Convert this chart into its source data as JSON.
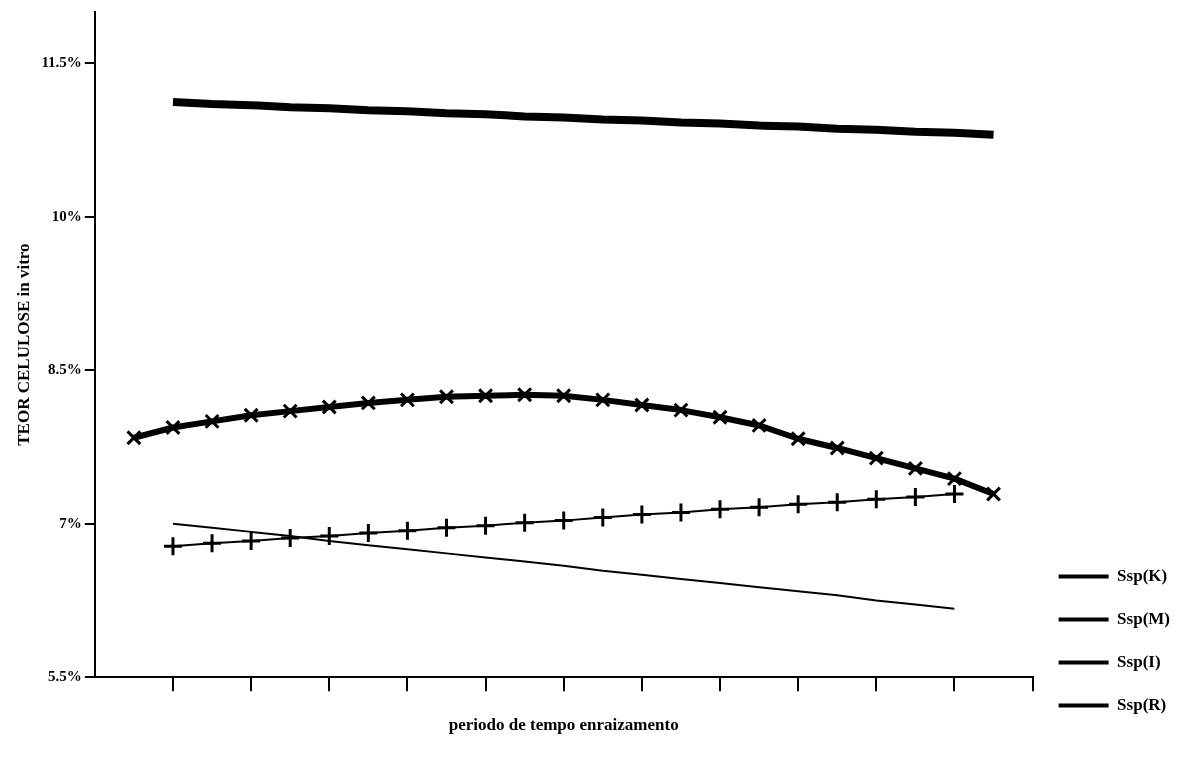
{
  "chart_data": {
    "type": "line",
    "xlabel": "periodo de tempo enraizamento",
    "ylabel": "TEOR CELULOSE in vitro",
    "categories": [
      null,
      null,
      null,
      null,
      null,
      null,
      null,
      null,
      null,
      null,
      null,
      null,
      null,
      null,
      null,
      null,
      null,
      null,
      null,
      null,
      null,
      null,
      null,
      null,
      null
    ],
    "ylim": [
      5.5,
      12
    ],
    "yticks": [
      {
        "value": 5.5,
        "label": "5.5%"
      },
      {
        "value": 7,
        "label": "7%"
      },
      {
        "value": 8.5,
        "label": "8.5%"
      },
      {
        "value": 10,
        "label": "10%"
      },
      {
        "value": 11.5,
        "label": "11.5%"
      }
    ],
    "legend": "right",
    "grid": false,
    "series": [
      {
        "name": "Ssp(K)",
        "color": "#000000",
        "marker": "cross",
        "values": [
          null,
          null,
          6.78,
          6.81,
          6.83,
          6.86,
          6.88,
          6.91,
          6.93,
          6.96,
          6.98,
          7.01,
          7.03,
          7.06,
          7.09,
          7.11,
          7.14,
          7.16,
          7.19,
          7.21,
          7.24,
          7.26,
          7.29,
          null,
          null
        ]
      },
      {
        "name": "Ssp(M)",
        "color": "#000000",
        "marker": "none",
        "values": [
          null,
          null,
          7.0,
          6.96,
          6.92,
          6.88,
          6.83,
          6.79,
          6.75,
          6.71,
          6.67,
          6.63,
          6.59,
          6.54,
          6.5,
          6.46,
          6.42,
          6.38,
          6.34,
          6.3,
          6.25,
          6.21,
          6.17,
          null,
          null
        ]
      },
      {
        "name": "Ssp(I)",
        "color": "#000000",
        "marker": "x",
        "values": [
          null,
          7.84,
          7.94,
          8.0,
          8.06,
          8.1,
          8.14,
          8.18,
          8.21,
          8.24,
          8.25,
          8.26,
          8.25,
          8.21,
          8.16,
          8.11,
          8.04,
          7.96,
          7.83,
          7.74,
          7.64,
          7.54,
          7.44,
          7.29,
          null
        ]
      },
      {
        "name": "Ssp(R)",
        "color": "#000000",
        "marker": "none",
        "values": [
          null,
          null,
          11.12,
          11.1,
          11.09,
          11.07,
          11.06,
          11.04,
          11.03,
          11.01,
          11.0,
          10.98,
          10.97,
          10.95,
          10.94,
          10.92,
          10.91,
          10.89,
          10.88,
          10.86,
          10.85,
          10.83,
          10.82,
          10.8,
          null
        ]
      }
    ]
  }
}
